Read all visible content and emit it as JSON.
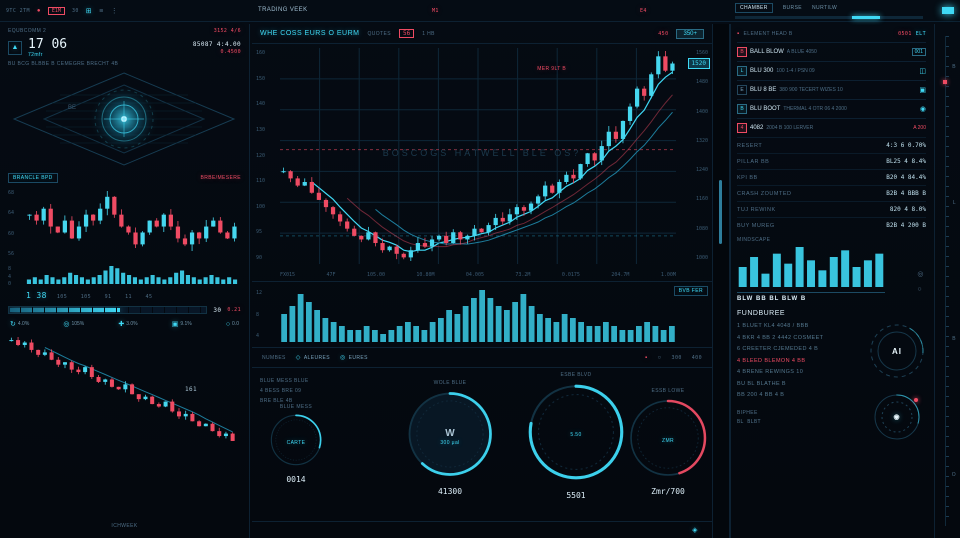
{
  "colors": {
    "cyan": "#3fd9f5",
    "cyan_dim": "#1d7d9c",
    "red": "#ef4b63",
    "bull": "#46d7ef",
    "bear": "#ef4b63",
    "grid": "#0e2738",
    "text_dim": "#4e6e86",
    "text": "#dceef8"
  },
  "icons": {
    "power": "●",
    "grid": "⊞",
    "menu": "≡",
    "dots": "⋮",
    "hex": "◇",
    "ring": "◎",
    "square": "▪",
    "refresh": "↻",
    "star": "✚",
    "box": "▣",
    "circle": "○",
    "diamond": "◈",
    "lock": "◫",
    "eye": "◉",
    "tri": "▲"
  },
  "topbar": {
    "brand": "9TC 2TM",
    "badge": "E1M",
    "val": "30",
    "app": "TRADING VEEK",
    "m1": "M1",
    "e4": "E4"
  },
  "left": {
    "title": "EQUBCOMM 2",
    "title_right": "3152 4/6",
    "price": "17 06",
    "price_sub": "72mfr",
    "stat": "85087 4:4.00",
    "stat_sub": "0.4500",
    "note": "BU BCG BLBBE B CEMEGRE BRECHT 4B",
    "radar_label": "BE",
    "tag_left": "BRANCLE BPD",
    "tag_right": "BRBE/MESERE",
    "axis1": [
      "68",
      "64",
      "60",
      "56"
    ],
    "axis_spark": [
      "8",
      "4",
      "0"
    ],
    "spark_value": "1 38",
    "spark_row": "105    105    91    11    45",
    "bar_left": "30",
    "bar_right": "0.21",
    "bar_pct": 56,
    "legend": [
      {
        "label": "4.0%"
      },
      {
        "label": "105%"
      },
      {
        "label": "3.0%"
      },
      {
        "label": "9.1%"
      },
      {
        "label": "0.0"
      }
    ],
    "chart2_tag": "161",
    "footer": "ICHWEEK"
  },
  "mid": {
    "sub": {
      "title": "WHE COSS EURS O EURM",
      "tag": "QUOTES",
      "alert": "56",
      "tf": "1 HB",
      "right_red": "450",
      "button": "350+"
    },
    "chart": {
      "watermark": "BOSCOGS HATWELL BLE OS?",
      "annotation": "MER 9LT B",
      "price_tag": "1520",
      "y_left": [
        "160",
        "150",
        "140",
        "130",
        "120",
        "110",
        "100",
        "95",
        "90"
      ],
      "y_right": [
        "1560",
        "1480",
        "1400",
        "1320",
        "1240",
        "1160",
        "1080",
        "1000"
      ],
      "x_labels": [
        "FX015",
        "47F",
        "105.00",
        "10.80M",
        "04.005",
        "73.2M",
        "0.0175",
        "204.7M",
        "1.00M"
      ]
    },
    "volume": {
      "tag": "BVB FER",
      "axis": [
        "12",
        "8",
        "4"
      ]
    },
    "tabs": {
      "left": "NUMBES",
      "a": "ALEURES",
      "b": "EURES",
      "s1": "300",
      "s2": "400"
    },
    "notes": [
      "BLUE MESS BLUE",
      "4 BESS BRE 09",
      "BRE BLE 4B"
    ],
    "gauges": [
      {
        "label": "BLUE MESS",
        "sub": "CARTE",
        "value": "0014",
        "pct": 30
      },
      {
        "label": "WOLE BLUE",
        "sub": "300 μal",
        "value": "41300",
        "pct": 62,
        "logo": "W"
      },
      {
        "label": "ESBE BLVD",
        "sub": "5.50",
        "value": "5501",
        "pct": 78
      },
      {
        "label": "ESSB LOWE",
        "sub": "ZMR",
        "value": "Zmr/700",
        "pct": 45,
        "red": true
      }
    ]
  },
  "right": {
    "tabs": {
      "t1": "CHAMBER",
      "t2": "BURSE",
      "t3": "NURTILW"
    },
    "slider_pct": 62,
    "head": {
      "title": "ELEMENT HEAD B",
      "right_red": "0501",
      "right_cyan": "ELT"
    },
    "rows": [
      {
        "tick": "B",
        "name": "BALL BLOW",
        "desc": "A BLUE 4050",
        "badge": "001"
      },
      {
        "tick": "L",
        "name": "BLU 300",
        "desc": "100 1-4 / PSN 09",
        "badge": ""
      },
      {
        "tick": "E",
        "name": "BLU 8 BE",
        "desc": "380 900 TECERT WIZES 10",
        "badge": ""
      },
      {
        "tick": "B",
        "name": "BLU BOOT",
        "desc": "THERMAL 4 OTR 06 4 2000",
        "badge": ""
      },
      {
        "tick": "4",
        "name": "4082",
        "desc": "2004 B 100 LERVER",
        "badge": "A 200"
      }
    ],
    "kv": [
      {
        "k": "RESERT",
        "v": "4:3 6 0.70%"
      },
      {
        "k": "PILLAR BB",
        "v": "BL25 4 8.4%"
      },
      {
        "k": "KPI BB",
        "v": "B20 4 84.4%"
      },
      {
        "k": "CRASH ZOUMTED",
        "v": "B2B 4 BBB B"
      },
      {
        "k": "TUJ REWINK",
        "v": "820 4 8.0%"
      },
      {
        "k": "BUY MUREG",
        "v": "B2B 4 200 B"
      }
    ],
    "mini_title": "MINDSCAPE",
    "caption": "BLW BB BL BLW B",
    "fund": {
      "title": "FUNDBUREE",
      "lines": [
        "1 BLUET KL4 4048 / BBB",
        "4 BKR 4 BB 2 4442 COSMEET",
        "6 CREETER CJEMEDED 4 B",
        "4 BLEED BLEMON 4 BB",
        "4 BRENE REWINGS 10",
        "BU BL BLATHE B",
        "BB 200 4 BB 4 B"
      ],
      "red_index": 3,
      "ring1": "AI",
      "footer": "BIPHEE",
      "footer2": "BL BLBT"
    }
  },
  "strip": {
    "labels": [
      "B",
      "L",
      "B",
      "O"
    ]
  },
  "charts": {
    "main_closes": [
      122,
      120,
      118,
      119,
      116,
      114,
      112,
      110,
      108,
      106,
      104,
      103,
      105,
      102,
      100,
      101,
      99,
      98,
      100,
      102,
      101,
      103,
      104,
      102,
      105,
      103,
      104,
      106,
      105,
      107,
      109,
      108,
      110,
      112,
      111,
      113,
      115,
      118,
      116,
      119,
      121,
      120,
      124,
      127,
      125,
      129,
      133,
      131,
      136,
      140,
      145,
      143,
      149,
      154,
      150,
      152
    ],
    "main_vol": [
      7,
      9,
      12,
      10,
      8,
      6,
      5,
      4,
      3,
      3,
      4,
      3,
      2,
      3,
      4,
      5,
      4,
      3,
      5,
      6,
      8,
      7,
      9,
      11,
      13,
      11,
      9,
      8,
      10,
      12,
      9,
      7,
      6,
      5,
      7,
      6,
      5,
      4,
      4,
      5,
      4,
      3,
      3,
      4,
      5,
      4,
      3,
      4
    ],
    "left1": [
      62,
      61,
      63,
      60,
      59,
      61,
      58,
      60,
      62,
      61,
      63,
      65,
      62,
      60,
      59,
      57,
      59,
      61,
      60,
      62,
      60,
      58,
      57,
      59,
      58,
      60,
      61,
      59,
      58,
      60
    ],
    "left2": [
      96,
      94,
      95,
      92,
      90,
      91,
      88,
      86,
      87,
      84,
      83,
      85,
      81,
      79,
      80,
      77,
      76,
      78,
      74,
      72,
      73,
      70,
      69,
      71,
      67,
      65,
      66,
      63,
      61,
      62,
      59,
      57,
      58,
      55
    ],
    "spark": [
      2,
      3,
      2,
      4,
      3,
      2,
      3,
      5,
      4,
      3,
      2,
      3,
      4,
      6,
      8,
      7,
      5,
      4,
      3,
      2,
      3,
      4,
      3,
      2,
      3,
      5,
      6,
      4,
      3,
      2,
      3,
      4,
      3,
      2,
      3,
      2
    ],
    "right_bars": [
      6,
      9,
      4,
      10,
      7,
      12,
      8,
      5,
      9,
      11,
      6,
      8,
      10
    ]
  }
}
